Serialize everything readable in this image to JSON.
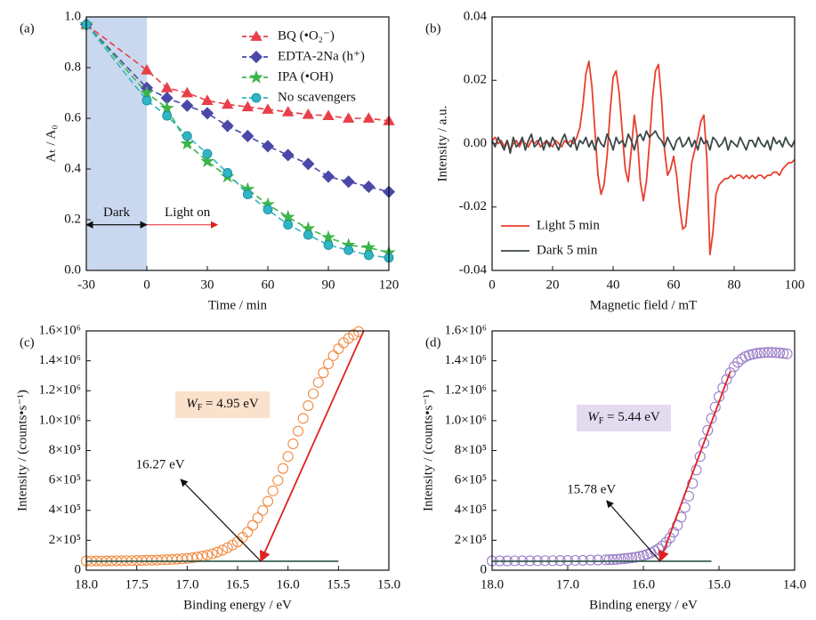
{
  "chart_data": [
    {
      "type": "line",
      "panel_label": "(a)",
      "xlabel": "Time / min",
      "ylabel": "Aₜ / A₀",
      "x": [
        -30,
        0,
        10,
        20,
        30,
        40,
        50,
        60,
        70,
        80,
        90,
        100,
        110,
        120
      ],
      "xlim": [
        -30,
        120
      ],
      "xticks": [
        -30,
        0,
        30,
        60,
        90,
        120
      ],
      "ylim": [
        0,
        1
      ],
      "yticks": [
        {
          "value": 0,
          "label": "0.0"
        },
        0.2,
        0.4,
        0.6,
        0.8,
        {
          "value": 1,
          "label": "1.0"
        }
      ],
      "line_style": "dashed",
      "legend": "upper right",
      "dark_region": [
        -30,
        0
      ],
      "dark_region_color": "#c9d8ee",
      "annotations": [
        {
          "text": "Dark",
          "x": [
            -30,
            0
          ],
          "y": 0.18,
          "color": "#000000",
          "arrow": "both"
        },
        {
          "text": "Light on",
          "x": [
            0,
            35
          ],
          "y": 0.18,
          "color": "#e8404a",
          "arrow": "end"
        }
      ],
      "series": [
        {
          "name": "BQ (•O₂⁻)",
          "color": "#e8404a",
          "marker": "triangle",
          "values": [
            0.97,
            0.79,
            0.72,
            0.7,
            0.67,
            0.655,
            0.645,
            0.635,
            0.625,
            0.615,
            0.61,
            0.6,
            0.6,
            0.59
          ]
        },
        {
          "name": "EDTA-2Na (h⁺)",
          "color": "#4a48a8",
          "marker": "diamond",
          "values": [
            0.97,
            0.72,
            0.68,
            0.65,
            0.62,
            0.57,
            0.53,
            0.49,
            0.455,
            0.42,
            0.37,
            0.35,
            0.33,
            0.31
          ]
        },
        {
          "name": "IPA (•OH)",
          "color": "#3cb44a",
          "marker": "star",
          "values": [
            0.97,
            0.7,
            0.64,
            0.5,
            0.43,
            0.37,
            0.32,
            0.26,
            0.21,
            0.165,
            0.13,
            0.1,
            0.09,
            0.07
          ]
        },
        {
          "name": "No scavengers",
          "color": "#2fb6c6",
          "marker": "circle",
          "values": [
            0.97,
            0.67,
            0.61,
            0.53,
            0.46,
            0.385,
            0.3,
            0.24,
            0.18,
            0.14,
            0.1,
            0.08,
            0.06,
            0.05
          ]
        }
      ]
    },
    {
      "type": "line",
      "panel_label": "(b)",
      "xlabel": "Magnetic field / mT",
      "ylabel": "Intensity / a.u.",
      "x": [
        0,
        1,
        2,
        3,
        4,
        5,
        6,
        7,
        8,
        9,
        10,
        11,
        12,
        13,
        14,
        15,
        16,
        17,
        18,
        19,
        20,
        21,
        22,
        23,
        24,
        25,
        26,
        27,
        28,
        29,
        30,
        31,
        32,
        33,
        34,
        35,
        36,
        37,
        38,
        39,
        40,
        41,
        42,
        43,
        44,
        45,
        46,
        47,
        48,
        49,
        50,
        51,
        52,
        53,
        54,
        55,
        56,
        57,
        58,
        59,
        60,
        61,
        62,
        63,
        64,
        65,
        66,
        67,
        68,
        69,
        70,
        71,
        72,
        73,
        74,
        75,
        76,
        77,
        78,
        79,
        80,
        81,
        82,
        83,
        84,
        85,
        86,
        87,
        88,
        89,
        90,
        91,
        92,
        93,
        94,
        95,
        96,
        97,
        98,
        99,
        100
      ],
      "xlim": [
        0,
        100
      ],
      "xticks": [
        0,
        20,
        40,
        60,
        80,
        100
      ],
      "ylim": [
        -0.04,
        0.04
      ],
      "yticks": [
        -0.04,
        -0.02,
        {
          "value": 0,
          "label": "0.00"
        },
        0.02,
        0.04
      ],
      "line_style": "solid",
      "legend": "lower left",
      "series": [
        {
          "name": "Light 5 min",
          "color": "#e8402e",
          "values": [
            0.001,
            0.002,
            0,
            0.001,
            -0.001,
            0.001,
            -0.002,
            0,
            0.001,
            -0.001,
            0.001,
            0,
            -0.001,
            0.001,
            0,
            0.001,
            -0.001,
            0,
            0.001,
            0,
            -0.001,
            0.001,
            0,
            -0.001,
            0.001,
            0,
            0.001,
            0,
            0.002,
            0.005,
            0.012,
            0.022,
            0.026,
            0.018,
            0.004,
            -0.01,
            -0.016,
            -0.013,
            -0.004,
            0.01,
            0.021,
            0.023,
            0.016,
            0.004,
            -0.008,
            -0.012,
            -0.002,
            0.009,
            0.002,
            -0.012,
            -0.018,
            -0.012,
            0,
            0.014,
            0.023,
            0.025,
            0.014,
            -0.002,
            -0.01,
            -0.008,
            -0.004,
            -0.01,
            -0.02,
            -0.027,
            -0.026,
            -0.016,
            -0.006,
            -0.002,
            0.002,
            0.007,
            0.009,
            -0.005,
            -0.035,
            -0.028,
            -0.016,
            -0.013,
            -0.012,
            -0.011,
            -0.011,
            -0.01,
            -0.011,
            -0.01,
            -0.01,
            -0.011,
            -0.01,
            -0.011,
            -0.01,
            -0.011,
            -0.01,
            -0.01,
            -0.011,
            -0.01,
            -0.01,
            -0.009,
            -0.009,
            -0.01,
            -0.008,
            -0.007,
            -0.006,
            -0.006,
            -0.005
          ]
        },
        {
          "name": "Dark 5 min",
          "color": "#3b4848",
          "values": [
            0.001,
            -0.001,
            0.002,
            0,
            -0.002,
            0.001,
            -0.003,
            0.002,
            -0.001,
            0,
            0.002,
            -0.002,
            0.001,
            0.003,
            -0.001,
            0,
            0.002,
            -0.002,
            0.001,
            -0.001,
            0.002,
            0,
            -0.002,
            0.001,
            0.003,
            0,
            -0.001,
            0.002,
            -0.002,
            0.001,
            0,
            0.002,
            -0.001,
            0.001,
            -0.002,
            0.002,
            0,
            -0.001,
            0.003,
            0.001,
            -0.002,
            0.002,
            0,
            0.001,
            -0.001,
            0.003,
            0.001,
            -0.002,
            0.002,
            0.003,
            0.001,
            0.004,
            0.002,
            0.003,
            0.004,
            0.002,
            0.001,
            -0.001,
            0.002,
            0,
            -0.002,
            0.001,
            0.002,
            -0.001,
            0,
            0.002,
            -0.001,
            0.001,
            -0.002,
            0.002,
            0,
            0.001,
            -0.002,
            0.002,
            0.001,
            -0.001,
            0,
            0.002,
            -0.002,
            0.001,
            0,
            -0.001,
            0.002,
            0,
            -0.002,
            0.001,
            0.001,
            -0.001,
            0.002,
            0,
            -0.001,
            0.001,
            -0.002,
            0.002,
            0,
            0.001,
            -0.001,
            0.002,
            0,
            -0.001,
            0.001
          ]
        }
      ]
    },
    {
      "type": "scatter",
      "panel_label": "(c)",
      "xlabel": "Binding energy / eV",
      "ylabel": "Intensity / (counts•s⁻¹)",
      "x": [
        18,
        17.95,
        17.9,
        17.85,
        17.8,
        17.75,
        17.7,
        17.65,
        17.6,
        17.55,
        17.5,
        17.45,
        17.4,
        17.35,
        17.3,
        17.25,
        17.2,
        17.15,
        17.1,
        17.05,
        17,
        16.95,
        16.9,
        16.85,
        16.8,
        16.75,
        16.7,
        16.65,
        16.6,
        16.55,
        16.5,
        16.45,
        16.4,
        16.35,
        16.3,
        16.25,
        16.2,
        16.15,
        16.1,
        16.05,
        16,
        15.95,
        15.9,
        15.85,
        15.8,
        15.75,
        15.7,
        15.65,
        15.6,
        15.55,
        15.5,
        15.45,
        15.4,
        15.35,
        15.3
      ],
      "xlim": [
        18,
        15
      ],
      "xticks": [
        {
          "value": 18,
          "label": "18.0"
        },
        17.5,
        {
          "value": 17,
          "label": "17.0"
        },
        16.5,
        {
          "value": 16,
          "label": "16.0"
        },
        15.5,
        {
          "value": 15,
          "label": "15.0"
        }
      ],
      "ylim": [
        0,
        1600000
      ],
      "yticks": [
        0,
        {
          "value": 200000,
          "label": "2×10⁵"
        },
        {
          "value": 400000,
          "label": "4×10⁵"
        },
        {
          "value": 600000,
          "label": "6×10⁵"
        },
        {
          "value": 800000,
          "label": "8×10⁵"
        },
        {
          "value": 1000000,
          "label": "1.0×10⁶"
        },
        {
          "value": 1200000,
          "label": "1.2×10⁶"
        },
        {
          "value": 1400000,
          "label": "1.4×10⁶"
        },
        {
          "value": 1600000,
          "label": "1.6×10⁶"
        }
      ],
      "series": [
        {
          "color": "#f08a40",
          "values": [
            62000,
            61000,
            62000,
            61000,
            62000,
            62000,
            63000,
            63000,
            64000,
            64000,
            65000,
            65000,
            66000,
            67000,
            68000,
            69000,
            70000,
            72000,
            74000,
            76000,
            79000,
            83000,
            88000,
            94000,
            101000,
            110000,
            121000,
            134000,
            150000,
            168000,
            190000,
            220000,
            255000,
            300000,
            350000,
            400000,
            460000,
            530000,
            600000,
            680000,
            760000,
            845000,
            930000,
            1015000,
            1100000,
            1180000,
            1255000,
            1320000,
            1380000,
            1435000,
            1480000,
            1520000,
            1550000,
            1575000,
            1595000
          ]
        }
      ],
      "fit_line": {
        "x": [
          15.25,
          16.27
        ],
        "y": [
          1600000,
          60000
        ],
        "color": "#e02020"
      },
      "baseline": {
        "x": [
          18,
          15.5
        ],
        "y": 60000,
        "color": "#2a5446"
      },
      "cutoff": {
        "value": 16.27,
        "label": "16.27 eV"
      },
      "work_function": {
        "symbol": "W",
        "subscript": "F",
        "text": " = 4.95 eV",
        "box_color": "#fbe1cb"
      }
    },
    {
      "type": "scatter",
      "panel_label": "(d)",
      "xlabel": "Binding energy / eV",
      "ylabel": "Intensity / (counts•s⁻¹)",
      "x": [
        18,
        17.9,
        17.8,
        17.7,
        17.6,
        17.5,
        17.4,
        17.3,
        17.2,
        17.1,
        17,
        16.9,
        16.8,
        16.7,
        16.6,
        16.5,
        16.45,
        16.4,
        16.35,
        16.3,
        16.25,
        16.2,
        16.15,
        16.1,
        16.05,
        16,
        15.95,
        15.9,
        15.85,
        15.8,
        15.75,
        15.7,
        15.65,
        15.6,
        15.55,
        15.5,
        15.45,
        15.4,
        15.35,
        15.3,
        15.25,
        15.2,
        15.15,
        15.1,
        15.05,
        15,
        14.95,
        14.9,
        14.85,
        14.8,
        14.75,
        14.7,
        14.65,
        14.6,
        14.55,
        14.5,
        14.45,
        14.4,
        14.35,
        14.3,
        14.25,
        14.2,
        14.15,
        14.1
      ],
      "xlim": [
        18,
        14
      ],
      "xticks": [
        {
          "value": 18,
          "label": "18.0"
        },
        {
          "value": 17,
          "label": "17.0"
        },
        {
          "value": 16,
          "label": "16.0"
        },
        {
          "value": 15,
          "label": "15.0"
        },
        {
          "value": 14,
          "label": "14.0"
        }
      ],
      "ylim": [
        0,
        1600000
      ],
      "yticks": [
        0,
        {
          "value": 200000,
          "label": "2×10⁵"
        },
        {
          "value": 400000,
          "label": "4×10⁵"
        },
        {
          "value": 600000,
          "label": "6×10⁵"
        },
        {
          "value": 800000,
          "label": "8×10⁵"
        },
        {
          "value": 1000000,
          "label": "1.0×10⁶"
        },
        {
          "value": 1200000,
          "label": "1.2×10⁶"
        },
        {
          "value": 1400000,
          "label": "1.4×10⁶"
        },
        {
          "value": 1600000,
          "label": "1.6×10⁶"
        }
      ],
      "series": [
        {
          "color": "#9a7cc8",
          "values": [
            62000,
            62000,
            62000,
            62500,
            63000,
            63000,
            63500,
            64000,
            64000,
            64500,
            65000,
            65500,
            66000,
            67000,
            68000,
            69000,
            70000,
            71000,
            73000,
            75000,
            77000,
            80000,
            83000,
            87000,
            92000,
            98000,
            106000,
            116000,
            128000,
            143000,
            162000,
            186000,
            216000,
            254000,
            300000,
            355000,
            420000,
            495000,
            580000,
            670000,
            760000,
            850000,
            935000,
            1015000,
            1090000,
            1160000,
            1220000,
            1275000,
            1320000,
            1360000,
            1390000,
            1412000,
            1428000,
            1438000,
            1445000,
            1450000,
            1453000,
            1455000,
            1456000,
            1456000,
            1455000,
            1453000,
            1450000,
            1447000
          ]
        }
      ],
      "fit_line": {
        "x": [
          14.85,
          15.78
        ],
        "y": [
          1330000,
          60000
        ],
        "color": "#e02020"
      },
      "baseline": {
        "x": [
          18,
          15.1
        ],
        "y": 60000,
        "color": "#2a5446"
      },
      "cutoff": {
        "value": 15.78,
        "label": "15.78 eV"
      },
      "work_function": {
        "symbol": "W",
        "subscript": "F",
        "text": " = 5.44 eV",
        "box_color": "#e4dbf0"
      }
    }
  ]
}
